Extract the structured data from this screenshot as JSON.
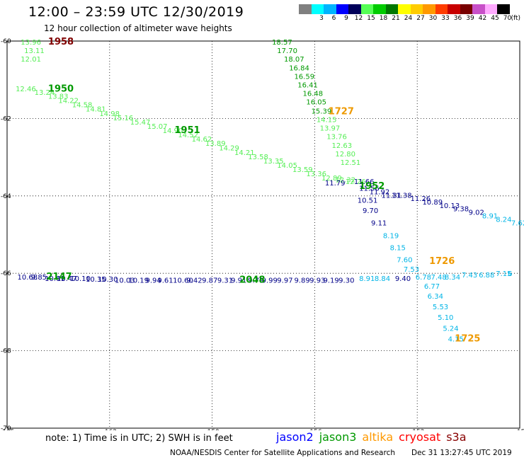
{
  "title": "12:00 – 23:59 UTC 12/30/2019",
  "subtitle": "12 hour collection of altimeter wave heights",
  "legend": {
    "unit": "(ft)",
    "bins": [
      {
        "color": "#808080",
        "label": ""
      },
      {
        "color": "#00ffff",
        "label": "3"
      },
      {
        "color": "#00b4ff",
        "label": "6"
      },
      {
        "color": "#0000ff",
        "label": "9"
      },
      {
        "color": "#00005a",
        "label": "12"
      },
      {
        "color": "#55ff55",
        "label": "15"
      },
      {
        "color": "#00cc00",
        "label": "18"
      },
      {
        "color": "#007800",
        "label": "21"
      },
      {
        "color": "#ffff00",
        "label": "24"
      },
      {
        "color": "#ffcc00",
        "label": "27"
      },
      {
        "color": "#ff9900",
        "label": "30"
      },
      {
        "color": "#ff3c00",
        "label": "33"
      },
      {
        "color": "#c80000",
        "label": "36"
      },
      {
        "color": "#780000",
        "label": "39"
      },
      {
        "color": "#c850c8",
        "label": "42"
      },
      {
        "color": "#ffaaff",
        "label": "45"
      },
      {
        "color": "#000000",
        "label": "70"
      }
    ]
  },
  "map": {
    "lon_range": [
      -165,
      -150
    ],
    "lat_range": [
      -70,
      -60
    ],
    "lon_ticks": [
      {
        "value": -165,
        "label": "-165"
      },
      {
        "value": -162,
        "label": "-162"
      },
      {
        "value": -159,
        "label": "-159"
      },
      {
        "value": -156,
        "label": "-156"
      },
      {
        "value": -153,
        "label": "-153"
      },
      {
        "value": -150,
        "label": "-15"
      }
    ],
    "lat_ticks": [
      {
        "value": -60,
        "label": "-60"
      },
      {
        "value": -62,
        "label": "-62"
      },
      {
        "value": -64,
        "label": "-64"
      },
      {
        "value": -66,
        "label": "-66"
      },
      {
        "value": -68,
        "label": "-68"
      },
      {
        "value": -70,
        "label": "-70"
      }
    ],
    "grid": true,
    "colors": {
      "light_green": "#55ee55",
      "dark_green": "#009900",
      "navy": "#000088",
      "cyan": "#00b4e6",
      "orange": "#ee9900",
      "maroon": "#800000"
    },
    "tracks": [
      {
        "color": "light_green",
        "points": [
          {
            "lon": -164.6,
            "lat": -60.09,
            "v": "13.96"
          },
          {
            "lon": -164.5,
            "lat": -60.31,
            "v": "13.11"
          },
          {
            "lon": -164.6,
            "lat": -60.53,
            "v": "12.01"
          }
        ]
      },
      {
        "color": "light_green",
        "points": [
          {
            "lon": -164.75,
            "lat": -61.3,
            "v": "12.46"
          },
          {
            "lon": -164.2,
            "lat": -61.39,
            "v": "13.24"
          },
          {
            "lon": -163.8,
            "lat": -61.49,
            "v": "13.83"
          },
          {
            "lon": -163.5,
            "lat": -61.6,
            "v": "14.22"
          },
          {
            "lon": -163.1,
            "lat": -61.71,
            "v": "14.58"
          },
          {
            "lon": -162.7,
            "lat": -61.82,
            "v": "14.81"
          },
          {
            "lon": -162.3,
            "lat": -61.94,
            "v": "14.98"
          },
          {
            "lon": -161.9,
            "lat": -62.05,
            "v": "15.16"
          },
          {
            "lon": -161.4,
            "lat": -62.16,
            "v": "15.47"
          },
          {
            "lon": -160.9,
            "lat": -62.27,
            "v": "15.07"
          },
          {
            "lon": -160.45,
            "lat": -62.38,
            "v": "14.90"
          },
          {
            "lon": -160.0,
            "lat": -62.49,
            "v": "14.52"
          },
          {
            "lon": -159.6,
            "lat": -62.6,
            "v": "14.62"
          },
          {
            "lon": -159.2,
            "lat": -62.71,
            "v": "13.89"
          },
          {
            "lon": -158.8,
            "lat": -62.82,
            "v": "14.29"
          },
          {
            "lon": -158.35,
            "lat": -62.94,
            "v": "14.21"
          },
          {
            "lon": -157.95,
            "lat": -63.05,
            "v": "13.58"
          },
          {
            "lon": -157.5,
            "lat": -63.16,
            "v": "13.35"
          },
          {
            "lon": -157.1,
            "lat": -63.27,
            "v": "14.05"
          },
          {
            "lon": -156.65,
            "lat": -63.38,
            "v": "13.59"
          },
          {
            "lon": -156.25,
            "lat": -63.49,
            "v": "13.36"
          },
          {
            "lon": -155.8,
            "lat": -63.6,
            "v": "12.89"
          },
          {
            "lon": -155.4,
            "lat": -63.65,
            "v": "12.32"
          }
        ]
      },
      {
        "color": "dark_green",
        "points": [
          {
            "lon": -157.25,
            "lat": -60.09,
            "v": "18.57"
          },
          {
            "lon": -157.1,
            "lat": -60.31,
            "v": "17.70"
          },
          {
            "lon": -156.9,
            "lat": -60.53,
            "v": "18.07"
          },
          {
            "lon": -156.75,
            "lat": -60.76,
            "v": "16.84"
          },
          {
            "lon": -156.6,
            "lat": -60.98,
            "v": "16.59"
          },
          {
            "lon": -156.5,
            "lat": -61.2,
            "v": "16.41"
          },
          {
            "lon": -156.35,
            "lat": -61.42,
            "v": "16.48"
          },
          {
            "lon": -156.25,
            "lat": -61.64,
            "v": "16.05"
          },
          {
            "lon": -156.1,
            "lat": -61.87,
            "v": "15.39"
          }
        ]
      },
      {
        "color": "light_green",
        "points": [
          {
            "lon": -155.95,
            "lat": -62.09,
            "v": "14.15"
          },
          {
            "lon": -155.85,
            "lat": -62.31,
            "v": "13.97"
          },
          {
            "lon": -155.65,
            "lat": -62.53,
            "v": "13.76"
          },
          {
            "lon": -155.5,
            "lat": -62.76,
            "v": "12.63"
          },
          {
            "lon": -155.4,
            "lat": -62.98,
            "v": "12.80"
          },
          {
            "lon": -155.25,
            "lat": -63.2,
            "v": "12.51"
          },
          {
            "lon": -155.1,
            "lat": -63.69,
            "v": "12.26"
          }
        ]
      },
      {
        "color": "navy",
        "points": [
          {
            "lon": -155.7,
            "lat": -63.73,
            "v": "11.79"
          },
          {
            "lon": -154.85,
            "lat": -63.69,
            "v": "11.66"
          },
          {
            "lon": -154.7,
            "lat": -63.87,
            "v": "11.56"
          },
          {
            "lon": -154.4,
            "lat": -63.96,
            "v": "11.92"
          },
          {
            "lon": -154.05,
            "lat": -64.05,
            "v": "11.31"
          },
          {
            "lon": -153.75,
            "lat": -64.05,
            "v": "11.38"
          },
          {
            "lon": -154.75,
            "lat": -64.18,
            "v": "10.51"
          },
          {
            "lon": -153.2,
            "lat": -64.13,
            "v": "11.26"
          },
          {
            "lon": -152.85,
            "lat": -64.22,
            "v": "10.89"
          },
          {
            "lon": -152.35,
            "lat": -64.31,
            "v": "10.13"
          },
          {
            "lon": -151.95,
            "lat": -64.4,
            "v": "9.38"
          },
          {
            "lon": -151.5,
            "lat": -64.49,
            "v": "9.02"
          },
          {
            "lon": -154.6,
            "lat": -64.44,
            "v": "9.70"
          },
          {
            "lon": -154.35,
            "lat": -64.76,
            "v": "9.11"
          }
        ]
      },
      {
        "color": "cyan",
        "points": [
          {
            "lon": -151.1,
            "lat": -64.58,
            "v": "8.91"
          },
          {
            "lon": -150.7,
            "lat": -64.67,
            "v": "8.24"
          },
          {
            "lon": -150.25,
            "lat": -64.76,
            "v": "7.62"
          },
          {
            "lon": -154.0,
            "lat": -65.09,
            "v": "8.19"
          },
          {
            "lon": -153.8,
            "lat": -65.4,
            "v": "8.15"
          },
          {
            "lon": -153.6,
            "lat": -65.71,
            "v": "7.60"
          },
          {
            "lon": -153.4,
            "lat": -65.96,
            "v": "7.53"
          },
          {
            "lon": -152.8,
            "lat": -66.4,
            "v": "6.77"
          },
          {
            "lon": -152.7,
            "lat": -66.65,
            "v": "6.34"
          },
          {
            "lon": -152.55,
            "lat": -66.93,
            "v": "5.53"
          },
          {
            "lon": -152.4,
            "lat": -67.2,
            "v": "5.10"
          },
          {
            "lon": -152.25,
            "lat": -67.49,
            "v": "5.24"
          },
          {
            "lon": -152.1,
            "lat": -67.76,
            "v": "4.15"
          }
        ]
      },
      {
        "color": "navy",
        "points": [
          {
            "lon": -164.7,
            "lat": -66.16,
            "v": "10.68"
          },
          {
            "lon": -164.3,
            "lat": -66.16,
            "v": "9.85"
          },
          {
            "lon": -163.9,
            "lat": -66.2,
            "v": "10.61"
          },
          {
            "lon": -163.55,
            "lat": -66.2,
            "v": "10.47"
          },
          {
            "lon": -163.15,
            "lat": -66.2,
            "v": "10.10"
          },
          {
            "lon": -162.7,
            "lat": -66.22,
            "v": "10.35"
          },
          {
            "lon": -162.35,
            "lat": -66.22,
            "v": "10.30"
          },
          {
            "lon": -161.85,
            "lat": -66.24,
            "v": "10.03"
          },
          {
            "lon": -161.45,
            "lat": -66.24,
            "v": "10.19"
          },
          {
            "lon": -160.95,
            "lat": -66.24,
            "v": "9.94"
          },
          {
            "lon": -160.6,
            "lat": -66.24,
            "v": "9.61"
          },
          {
            "lon": -160.15,
            "lat": -66.24,
            "v": "10.60"
          },
          {
            "lon": -159.75,
            "lat": -66.24,
            "v": "9.42"
          },
          {
            "lon": -159.3,
            "lat": -66.24,
            "v": "9.87"
          },
          {
            "lon": -158.85,
            "lat": -66.24,
            "v": "9.31"
          },
          {
            "lon": -158.45,
            "lat": -66.24,
            "v": "9.91"
          },
          {
            "lon": -157.95,
            "lat": -66.24,
            "v": "9.79"
          },
          {
            "lon": -157.55,
            "lat": -66.24,
            "v": "9.99"
          },
          {
            "lon": -157.1,
            "lat": -66.24,
            "v": "9.97"
          },
          {
            "lon": -156.6,
            "lat": -66.24,
            "v": "9.89"
          },
          {
            "lon": -156.15,
            "lat": -66.24,
            "v": "9.93"
          },
          {
            "lon": -155.75,
            "lat": -66.24,
            "v": "9.19"
          },
          {
            "lon": -155.3,
            "lat": -66.24,
            "v": "9.30"
          },
          {
            "lon": -153.65,
            "lat": -66.2,
            "v": "9.40"
          }
        ]
      },
      {
        "color": "cyan",
        "points": [
          {
            "lon": -154.7,
            "lat": -66.2,
            "v": "8.91"
          },
          {
            "lon": -154.25,
            "lat": -66.2,
            "v": "8.84"
          },
          {
            "lon": -153.05,
            "lat": -66.16,
            "v": "6.78"
          },
          {
            "lon": -152.6,
            "lat": -66.16,
            "v": "7.48"
          },
          {
            "lon": -152.2,
            "lat": -66.16,
            "v": "8.34"
          },
          {
            "lon": -151.7,
            "lat": -66.11,
            "v": "7.43"
          },
          {
            "lon": -151.2,
            "lat": -66.11,
            "v": "6.88"
          },
          {
            "lon": -150.7,
            "lat": -66.07,
            "v": "7.15"
          },
          {
            "lon": -150.35,
            "lat": -66.07,
            "v": "6"
          }
        ]
      }
    ],
    "times": [
      {
        "lon": -163.8,
        "lat": -60.09,
        "label": "1958",
        "color": "maroon"
      },
      {
        "lon": -163.8,
        "lat": -61.31,
        "label": "1950",
        "color": "dark_green"
      },
      {
        "lon": -160.1,
        "lat": -62.38,
        "label": "1951",
        "color": "dark_green"
      },
      {
        "lon": -154.7,
        "lat": -63.82,
        "label": "1952",
        "color": "dark_green"
      },
      {
        "lon": -158.2,
        "lat": -66.24,
        "label": "2048",
        "color": "dark_green"
      },
      {
        "lon": -163.85,
        "lat": -66.16,
        "label": "2147",
        "color": "dark_green"
      },
      {
        "lon": -155.6,
        "lat": -61.89,
        "label": "1727",
        "color": "orange"
      },
      {
        "lon": -152.65,
        "lat": -65.76,
        "label": "1726",
        "color": "orange"
      },
      {
        "lon": -151.9,
        "lat": -67.76,
        "label": "1725",
        "color": "orange"
      }
    ]
  },
  "footer": {
    "note": "note: 1) Time is in UTC; 2) SWH is in feet",
    "satellites": [
      {
        "name": "jason2",
        "color": "#0000ff"
      },
      {
        "name": "jason3",
        "color": "#009900"
      },
      {
        "name": "altika",
        "color": "#ff9900"
      },
      {
        "name": "cryosat",
        "color": "#ff0000"
      },
      {
        "name": "s3a",
        "color": "#880000"
      }
    ],
    "credit": "NOAA/NESDIS Center for Satellite Applications and Research",
    "timestamp": "Dec 31 13:27:45 UTC 2019"
  }
}
